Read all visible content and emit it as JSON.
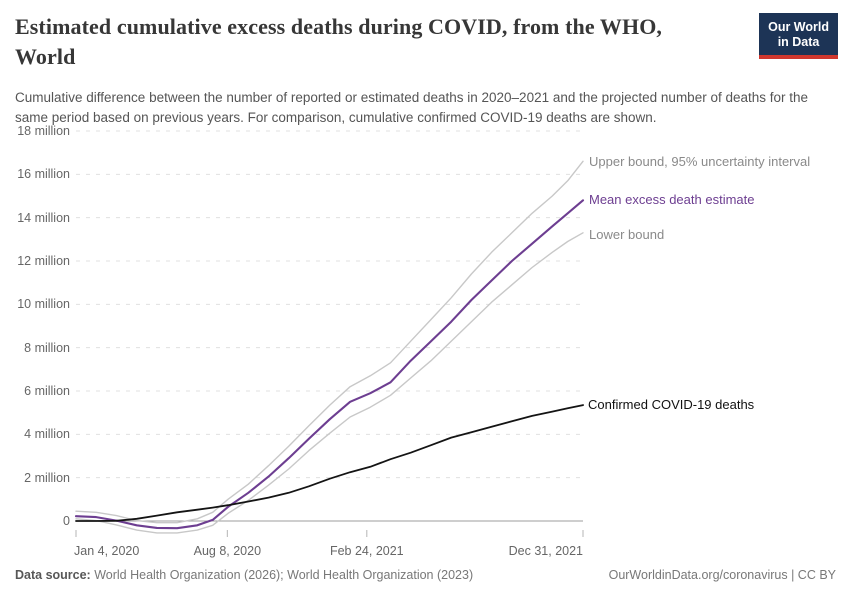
{
  "header": {
    "title": "Estimated cumulative excess deaths during COVID, from the WHO, World",
    "title_line1": "Estimated cumulative excess deaths during COVID, from the WHO,",
    "title_line2": "World",
    "subtitle": "Cumulative difference between the number of reported or estimated deaths in 2020–2021 and the projected number of deaths for the same period based on previous years. For comparison, cumulative confirmed COVID-19 deaths are shown.",
    "logo": {
      "line1": "Our World",
      "line2": "in Data",
      "bg_color": "#1d3456",
      "accent_color": "#d0372e"
    }
  },
  "legend": {
    "upper": "Upper bound, 95% uncertainty interval",
    "mean": "Mean excess death estimate",
    "lower": "Lower bound",
    "confirmed": "Confirmed COVID-19 deaths"
  },
  "footer": {
    "source_label": "Data source:",
    "source_text": " World Health Organization (2026); World Health Organization (2023)",
    "credit": "OurWorldinData.org/coronavirus | CC BY"
  },
  "chart_data": {
    "type": "line",
    "title": "Estimated cumulative excess deaths during COVID, from the WHO, World",
    "unit": "million deaths",
    "grid": true,
    "legend_position": "right-of-line-ends",
    "x_range": [
      "2020-01-04",
      "2021-12-31"
    ],
    "ylim": [
      -1,
      18
    ],
    "yticks": [
      {
        "v": 18,
        "label": "18 million"
      },
      {
        "v": 16,
        "label": "16 million"
      },
      {
        "v": 14,
        "label": "14 million"
      },
      {
        "v": 12,
        "label": "12 million"
      },
      {
        "v": 10,
        "label": "10 million"
      },
      {
        "v": 8,
        "label": "8 million"
      },
      {
        "v": 6,
        "label": "6 million"
      },
      {
        "v": 4,
        "label": "4 million"
      },
      {
        "v": 2,
        "label": "2 million"
      },
      {
        "v": 0,
        "label": "0"
      }
    ],
    "xticks": [
      {
        "label": "Jan 4, 2020",
        "date": "2020-01-04",
        "align": "left"
      },
      {
        "label": "Aug 8, 2020",
        "date": "2020-08-08",
        "align": "center"
      },
      {
        "label": "Feb 24, 2021",
        "date": "2021-02-24",
        "align": "center"
      },
      {
        "label": "Dec 31, 2021",
        "date": "2021-12-31",
        "align": "right"
      }
    ],
    "x": [
      "2020-01-04",
      "2020-02-02",
      "2020-03-02",
      "2020-03-31",
      "2020-04-29",
      "2020-05-28",
      "2020-06-26",
      "2020-07-18",
      "2020-08-09",
      "2020-09-07",
      "2020-10-06",
      "2020-11-04",
      "2020-12-03",
      "2021-01-02",
      "2021-01-31",
      "2021-03-01",
      "2021-03-30",
      "2021-04-28",
      "2021-05-27",
      "2021-06-25",
      "2021-07-24",
      "2021-08-22",
      "2021-09-20",
      "2021-10-19",
      "2021-11-17",
      "2021-12-09",
      "2021-12-31"
    ],
    "series": [
      {
        "key": "upper_bound",
        "name": "Upper bound, 95% uncertainty interval",
        "color": "#c8c8c8",
        "width": 1.4,
        "values": [
          0.45,
          0.4,
          0.25,
          0.02,
          -0.08,
          -0.08,
          0.1,
          0.4,
          1.0,
          1.7,
          2.55,
          3.45,
          4.4,
          5.35,
          6.2,
          6.7,
          7.3,
          8.3,
          9.3,
          10.3,
          11.4,
          12.4,
          13.3,
          14.2,
          15.0,
          15.7,
          16.6
        ]
      },
      {
        "key": "lower_bound",
        "name": "Lower bound",
        "color": "#c8c8c8",
        "width": 1.4,
        "values": [
          0.1,
          0.02,
          -0.18,
          -0.42,
          -0.55,
          -0.55,
          -0.42,
          -0.2,
          0.35,
          0.95,
          1.65,
          2.4,
          3.25,
          4.05,
          4.8,
          5.25,
          5.8,
          6.6,
          7.4,
          8.3,
          9.2,
          10.1,
          10.9,
          11.7,
          12.4,
          12.9,
          13.3
        ]
      },
      {
        "key": "mean_excess",
        "name": "Mean excess death estimate",
        "color": "#6d3e91",
        "width": 2.1,
        "values": [
          0.22,
          0.18,
          0.02,
          -0.2,
          -0.32,
          -0.33,
          -0.2,
          0.05,
          0.65,
          1.3,
          2.05,
          2.9,
          3.8,
          4.7,
          5.5,
          5.9,
          6.4,
          7.4,
          8.3,
          9.2,
          10.2,
          11.1,
          12.0,
          12.8,
          13.6,
          14.2,
          14.8
        ]
      },
      {
        "key": "confirmed",
        "name": "Confirmed COVID-19 deaths",
        "color": "#141414",
        "width": 1.8,
        "values": [
          0.0,
          0.0,
          0.01,
          0.1,
          0.25,
          0.4,
          0.52,
          0.62,
          0.73,
          0.9,
          1.08,
          1.3,
          1.6,
          1.95,
          2.25,
          2.5,
          2.85,
          3.15,
          3.5,
          3.85,
          4.1,
          4.35,
          4.6,
          4.85,
          5.05,
          5.2,
          5.35
        ]
      }
    ]
  }
}
